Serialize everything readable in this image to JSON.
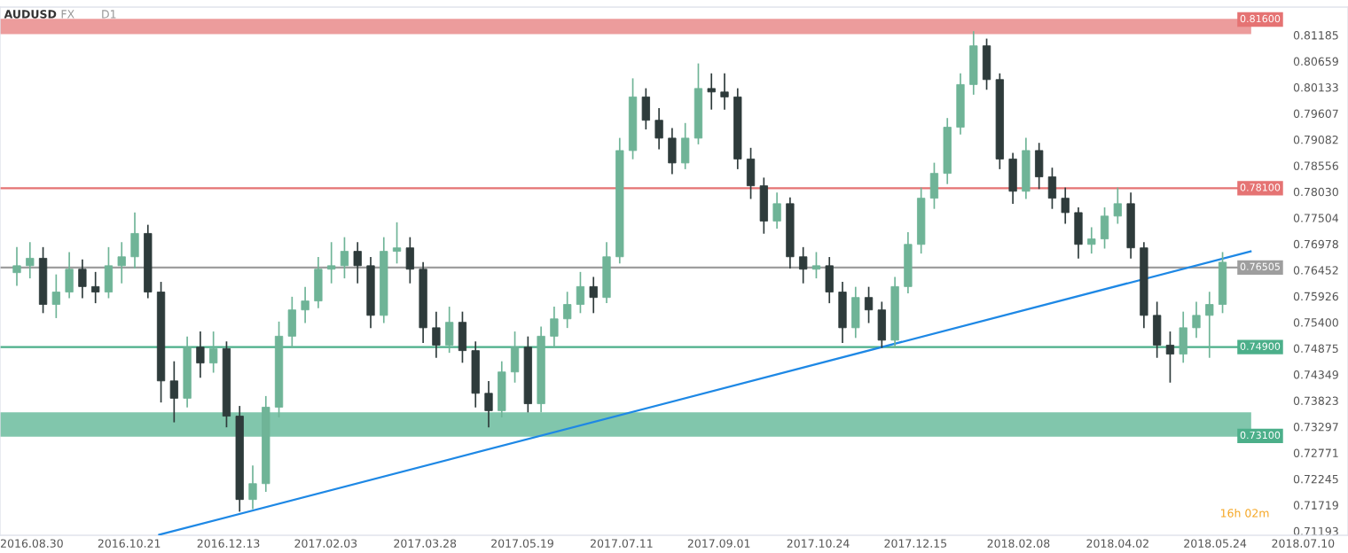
{
  "chart_data": {
    "type": "candlestick",
    "title": "AUDUSD",
    "annotations": [
      "FX",
      "D1",
      "16h 02m"
    ],
    "x": [
      "2016-08-22",
      "2016-08-29",
      "2016-09-05",
      "2016-09-12",
      "2016-09-19",
      "2016-09-26",
      "2016-10-03",
      "2016-10-10",
      "2016-10-17",
      "2016-10-24",
      "2016-10-31",
      "2016-11-07",
      "2016-11-14",
      "2016-11-21",
      "2016-11-28",
      "2016-12-05",
      "2016-12-12",
      "2016-12-19",
      "2016-12-26",
      "2017-01-02",
      "2017-01-09",
      "2017-01-16",
      "2017-01-23",
      "2017-01-30",
      "2017-02-06",
      "2017-02-13",
      "2017-02-20",
      "2017-02-27",
      "2017-03-06",
      "2017-03-13",
      "2017-03-20",
      "2017-03-27",
      "2017-04-03",
      "2017-04-10",
      "2017-04-17",
      "2017-04-24",
      "2017-05-01",
      "2017-05-08",
      "2017-05-15",
      "2017-05-22",
      "2017-05-29",
      "2017-06-05",
      "2017-06-12",
      "2017-06-19",
      "2017-06-26",
      "2017-07-03",
      "2017-07-10",
      "2017-07-17",
      "2017-07-24",
      "2017-07-31",
      "2017-08-07",
      "2017-08-14",
      "2017-08-21",
      "2017-08-28",
      "2017-09-04",
      "2017-09-11",
      "2017-09-18",
      "2017-09-25",
      "2017-10-02",
      "2017-10-09",
      "2017-10-16",
      "2017-10-23",
      "2017-10-30",
      "2017-11-06",
      "2017-11-13",
      "2017-11-20",
      "2017-11-27",
      "2017-12-04",
      "2017-12-11",
      "2017-12-18",
      "2017-12-25",
      "2018-01-01",
      "2018-01-08",
      "2018-01-15",
      "2018-01-22",
      "2018-01-29",
      "2018-02-05",
      "2018-02-12",
      "2018-02-19",
      "2018-02-26",
      "2018-03-05",
      "2018-03-12",
      "2018-03-19",
      "2018-03-26",
      "2018-04-02",
      "2018-04-09",
      "2018-04-16",
      "2018-04-23",
      "2018-04-30",
      "2018-05-07",
      "2018-05-14",
      "2018-05-21",
      "2018-05-28"
    ],
    "ohlc": [
      [
        0.764,
        0.769,
        0.7615,
        0.7654
      ],
      [
        0.7654,
        0.77,
        0.763,
        0.7669
      ],
      [
        0.7669,
        0.769,
        0.756,
        0.7576
      ],
      [
        0.7576,
        0.7635,
        0.755,
        0.7601
      ],
      [
        0.7601,
        0.768,
        0.759,
        0.7647
      ],
      [
        0.7647,
        0.7665,
        0.759,
        0.7612
      ],
      [
        0.7612,
        0.764,
        0.758,
        0.7601
      ],
      [
        0.7601,
        0.769,
        0.759,
        0.7654
      ],
      [
        0.7654,
        0.77,
        0.762,
        0.7672
      ],
      [
        0.7672,
        0.776,
        0.765,
        0.7719
      ],
      [
        0.7719,
        0.7735,
        0.759,
        0.7601
      ],
      [
        0.7601,
        0.762,
        0.738,
        0.7422
      ],
      [
        0.7422,
        0.746,
        0.734,
        0.7387
      ],
      [
        0.7387,
        0.751,
        0.737,
        0.749
      ],
      [
        0.749,
        0.752,
        0.743,
        0.7458
      ],
      [
        0.7458,
        0.752,
        0.744,
        0.7487
      ],
      [
        0.7487,
        0.75,
        0.733,
        0.7351
      ],
      [
        0.7351,
        0.737,
        0.716,
        0.7183
      ],
      [
        0.7183,
        0.725,
        0.7165,
        0.7215
      ],
      [
        0.7215,
        0.739,
        0.72,
        0.7369
      ],
      [
        0.7369,
        0.754,
        0.735,
        0.7512
      ],
      [
        0.7512,
        0.759,
        0.749,
        0.7565
      ],
      [
        0.7565,
        0.761,
        0.754,
        0.7583
      ],
      [
        0.7583,
        0.767,
        0.757,
        0.7647
      ],
      [
        0.7647,
        0.77,
        0.762,
        0.7654
      ],
      [
        0.7654,
        0.771,
        0.763,
        0.7683
      ],
      [
        0.7683,
        0.77,
        0.762,
        0.7654
      ],
      [
        0.7654,
        0.767,
        0.753,
        0.7554
      ],
      [
        0.7554,
        0.771,
        0.754,
        0.7683
      ],
      [
        0.7683,
        0.774,
        0.766,
        0.769
      ],
      [
        0.769,
        0.771,
        0.762,
        0.7647
      ],
      [
        0.7647,
        0.766,
        0.75,
        0.7529
      ],
      [
        0.7529,
        0.756,
        0.747,
        0.7494
      ],
      [
        0.7494,
        0.757,
        0.748,
        0.754
      ],
      [
        0.754,
        0.756,
        0.746,
        0.7483
      ],
      [
        0.7483,
        0.75,
        0.737,
        0.7397
      ],
      [
        0.7397,
        0.742,
        0.733,
        0.7362
      ],
      [
        0.7362,
        0.746,
        0.735,
        0.744
      ],
      [
        0.744,
        0.752,
        0.742,
        0.749
      ],
      [
        0.749,
        0.751,
        0.736,
        0.7376
      ],
      [
        0.7376,
        0.753,
        0.736,
        0.7512
      ],
      [
        0.7512,
        0.757,
        0.749,
        0.7547
      ],
      [
        0.7547,
        0.76,
        0.753,
        0.7576
      ],
      [
        0.7576,
        0.764,
        0.756,
        0.7612
      ],
      [
        0.7612,
        0.763,
        0.756,
        0.759
      ],
      [
        0.759,
        0.77,
        0.758,
        0.7672
      ],
      [
        0.7672,
        0.791,
        0.766,
        0.7886
      ],
      [
        0.7886,
        0.803,
        0.787,
        0.7994
      ],
      [
        0.7994,
        0.801,
        0.793,
        0.7947
      ],
      [
        0.7947,
        0.797,
        0.789,
        0.7911
      ],
      [
        0.7911,
        0.793,
        0.784,
        0.7861
      ],
      [
        0.7861,
        0.794,
        0.785,
        0.7911
      ],
      [
        0.7911,
        0.806,
        0.79,
        0.8011
      ],
      [
        0.8011,
        0.804,
        0.797,
        0.8004
      ],
      [
        0.8004,
        0.804,
        0.797,
        0.7994
      ],
      [
        0.7994,
        0.801,
        0.785,
        0.7869
      ],
      [
        0.7869,
        0.789,
        0.779,
        0.7815
      ],
      [
        0.7815,
        0.783,
        0.772,
        0.7744
      ],
      [
        0.7744,
        0.78,
        0.773,
        0.7779
      ],
      [
        0.7779,
        0.779,
        0.765,
        0.7672
      ],
      [
        0.7672,
        0.769,
        0.762,
        0.7647
      ],
      [
        0.7647,
        0.768,
        0.763,
        0.7654
      ],
      [
        0.7654,
        0.767,
        0.758,
        0.7601
      ],
      [
        0.7601,
        0.762,
        0.75,
        0.7529
      ],
      [
        0.7529,
        0.761,
        0.751,
        0.759
      ],
      [
        0.759,
        0.761,
        0.754,
        0.7565
      ],
      [
        0.7565,
        0.758,
        0.749,
        0.7504
      ],
      [
        0.7504,
        0.763,
        0.749,
        0.7612
      ],
      [
        0.7612,
        0.772,
        0.76,
        0.7697
      ],
      [
        0.7697,
        0.781,
        0.768,
        0.779
      ],
      [
        0.779,
        0.786,
        0.777,
        0.784
      ],
      [
        0.784,
        0.795,
        0.782,
        0.7933
      ],
      [
        0.7933,
        0.804,
        0.792,
        0.8019
      ],
      [
        0.8019,
        0.8125,
        0.8,
        0.8097
      ],
      [
        0.8097,
        0.811,
        0.801,
        0.8029
      ],
      [
        0.8029,
        0.804,
        0.785,
        0.7869
      ],
      [
        0.7869,
        0.788,
        0.778,
        0.7804
      ],
      [
        0.7804,
        0.791,
        0.779,
        0.7886
      ],
      [
        0.7886,
        0.79,
        0.781,
        0.7833
      ],
      [
        0.7833,
        0.785,
        0.777,
        0.779
      ],
      [
        0.779,
        0.781,
        0.774,
        0.7761
      ],
      [
        0.7761,
        0.777,
        0.767,
        0.7697
      ],
      [
        0.7697,
        0.773,
        0.768,
        0.7708
      ],
      [
        0.7708,
        0.777,
        0.769,
        0.7754
      ],
      [
        0.7754,
        0.781,
        0.774,
        0.7779
      ],
      [
        0.7779,
        0.78,
        0.767,
        0.769
      ],
      [
        0.769,
        0.77,
        0.753,
        0.7554
      ],
      [
        0.7554,
        0.758,
        0.747,
        0.7494
      ],
      [
        0.7494,
        0.752,
        0.742,
        0.7476
      ],
      [
        0.7476,
        0.756,
        0.746,
        0.7529
      ],
      [
        0.7529,
        0.758,
        0.751,
        0.7554
      ],
      [
        0.7554,
        0.76,
        0.747,
        0.7576
      ],
      [
        0.7576,
        0.768,
        0.756,
        0.7661
      ]
    ],
    "colors": [
      "#6fb497",
      "#6fb497",
      "#2e3b3b",
      "#6fb497",
      "#6fb497",
      "#2e3b3b",
      "#2e3b3b",
      "#6fb497",
      "#6fb497",
      "#6fb497",
      "#2e3b3b",
      "#2e3b3b",
      "#2e3b3b",
      "#6fb497",
      "#2e3b3b",
      "#6fb497",
      "#2e3b3b",
      "#2e3b3b",
      "#6fb497",
      "#6fb497",
      "#6fb497",
      "#6fb497",
      "#6fb497",
      "#6fb497",
      "#6fb497",
      "#6fb497",
      "#2e3b3b",
      "#2e3b3b",
      "#6fb497",
      "#6fb497",
      "#2e3b3b",
      "#2e3b3b",
      "#2e3b3b",
      "#6fb497",
      "#2e3b3b",
      "#2e3b3b",
      "#2e3b3b",
      "#6fb497",
      "#6fb497",
      "#2e3b3b",
      "#6fb497",
      "#6fb497",
      "#6fb497",
      "#6fb497",
      "#2e3b3b",
      "#6fb497",
      "#6fb497",
      "#6fb497",
      "#2e3b3b",
      "#2e3b3b",
      "#2e3b3b",
      "#6fb497",
      "#6fb497",
      "#2e3b3b",
      "#2e3b3b",
      "#2e3b3b",
      "#2e3b3b",
      "#2e3b3b",
      "#6fb497",
      "#2e3b3b",
      "#2e3b3b",
      "#6fb497",
      "#2e3b3b",
      "#2e3b3b",
      "#6fb497",
      "#2e3b3b",
      "#2e3b3b",
      "#6fb497",
      "#6fb497",
      "#6fb497",
      "#6fb497",
      "#6fb497",
      "#6fb497",
      "#6fb497",
      "#2e3b3b",
      "#2e3b3b",
      "#2e3b3b",
      "#6fb497",
      "#2e3b3b",
      "#2e3b3b",
      "#2e3b3b",
      "#2e3b3b",
      "#6fb497",
      "#6fb497",
      "#6fb497",
      "#2e3b3b",
      "#2e3b3b",
      "#2e3b3b",
      "#2e3b3b",
      "#6fb497",
      "#6fb497",
      "#6fb497",
      "#6fb497"
    ],
    "series": [
      {
        "type": "line",
        "color": "#1e88e5",
        "x": [
          "2016-11-06",
          "2018-06-12"
        ],
        "values": [
          0.7112,
          0.7683
        ]
      }
    ],
    "ref_lines": [
      {
        "axis": "y",
        "value": 0.781,
        "label": "0.78100",
        "color": "#e57373"
      },
      {
        "axis": "y",
        "value": 0.76505,
        "label": "0.76505",
        "color": "#9e9e9e"
      },
      {
        "axis": "y",
        "value": 0.749,
        "label": "0.74900",
        "color": "#4caf8a"
      }
    ],
    "bands": [
      {
        "axis": "y",
        "from": 0.8122,
        "to": 0.815,
        "label": "0.81600",
        "color": "#e57373"
      },
      {
        "axis": "y",
        "from": 0.7311,
        "to": 0.7357,
        "label": "0.73100",
        "color": "#4caf8a"
      }
    ],
    "xlim": [
      "2016-08-13",
      "2018-08-03"
    ],
    "xticks": [
      {
        "value": "2016-08-30",
        "label": "2016.08.30"
      },
      {
        "value": "2016-10-21",
        "label": "2016.10.21"
      },
      {
        "value": "2016-12-13",
        "label": "2016.12.13"
      },
      {
        "value": "2017-02-03",
        "label": "2017.02.03"
      },
      {
        "value": "2017-03-28",
        "label": "2017.03.28"
      },
      {
        "value": "2017-05-19",
        "label": "2017.05.19"
      },
      {
        "value": "2017-07-11",
        "label": "2017.07.11"
      },
      {
        "value": "2017-09-01",
        "label": "2017.09.01"
      },
      {
        "value": "2017-10-24",
        "label": "2017.10.24"
      },
      {
        "value": "2017-12-15",
        "label": "2017.12.15"
      },
      {
        "value": "2018-02-08",
        "label": "2018.02.08"
      },
      {
        "value": "2018-04-02",
        "label": "2018.04.02"
      },
      {
        "value": "2018-05-24",
        "label": "2018.05.24"
      },
      {
        "value": "2018-07-10",
        "label": "2018.07.10"
      }
    ],
    "ylim": [
      0.7111,
      0.8175
    ],
    "yticks": [
      0.81185,
      0.80659,
      0.80133,
      0.79607,
      0.79082,
      0.78556,
      {
        "value": 0.7803,
        "label": "0.78030"
      },
      0.77504,
      0.76978,
      0.76452,
      0.75926,
      {
        "value": 0.754,
        "label": "0.75400"
      },
      0.74875,
      0.74349,
      0.73823,
      0.73297,
      0.72771,
      0.72245,
      0.71719,
      0.71193
    ],
    "grid": false,
    "legend": false
  }
}
